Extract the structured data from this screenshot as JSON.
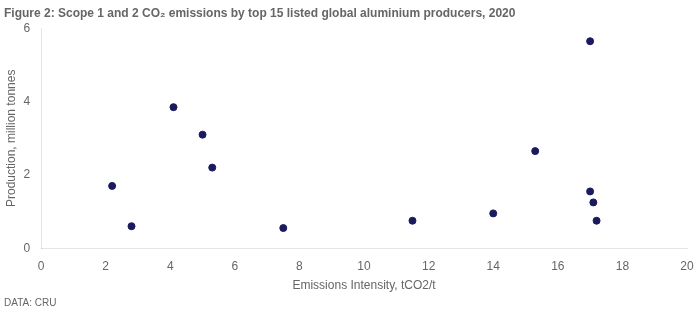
{
  "chart_data": {
    "type": "scatter",
    "title": "Figure 2: Scope 1 and 2 CO₂ emissions by top 15 listed global aluminium producers, 2020",
    "xlabel": "Emissions Intensity, tCO2/t",
    "ylabel": "Production, million tonnes",
    "footnote": "DATA: CRU",
    "x": [
      2.2,
      2.8,
      4.1,
      5.0,
      5.3,
      7.5,
      11.5,
      14.0,
      15.3,
      17.0,
      17.0,
      17.1,
      17.2
    ],
    "values": [
      1.7,
      0.6,
      3.85,
      3.1,
      2.2,
      0.55,
      0.75,
      0.95,
      2.65,
      5.65,
      1.55,
      1.25,
      0.75
    ],
    "color": "#1a1a5e",
    "xlim": [
      0,
      20
    ],
    "ylim": [
      0,
      6
    ],
    "xticks": [
      0,
      2,
      4,
      6,
      8,
      10,
      12,
      14,
      16,
      18,
      20
    ],
    "yticks": [
      0,
      2,
      4,
      6
    ],
    "grid": false
  }
}
